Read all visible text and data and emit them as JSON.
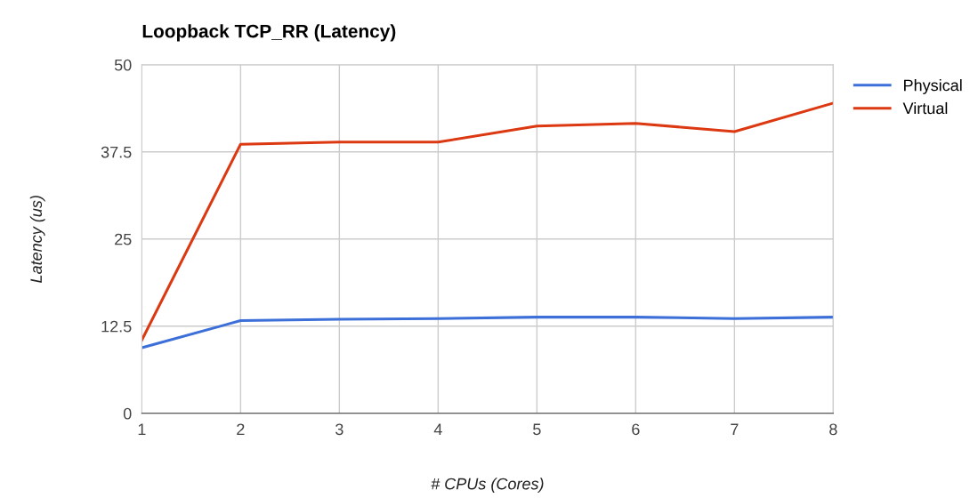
{
  "chart_data": {
    "type": "line",
    "title": "Loopback TCP_RR (Latency)",
    "xlabel": "# CPUs (Cores)",
    "ylabel": "Latency (us)",
    "x": [
      1,
      2,
      3,
      4,
      5,
      6,
      7,
      8
    ],
    "series": [
      {
        "name": "Physical",
        "color": "#3c6fd8",
        "values": [
          9.4,
          13.3,
          13.5,
          13.6,
          13.8,
          13.8,
          13.6,
          13.8
        ]
      },
      {
        "name": "Virtual",
        "color": "#dc3912",
        "values": [
          10.5,
          38.6,
          38.9,
          38.9,
          41.2,
          41.6,
          40.4,
          44.5
        ]
      }
    ],
    "xlim": [
      1,
      8
    ],
    "xticks": [
      1,
      2,
      3,
      4,
      5,
      6,
      7,
      8
    ],
    "ylim": [
      0,
      50
    ],
    "yticks": [
      0,
      12.5,
      25,
      37.5,
      50
    ],
    "grid": true,
    "legend": "top right",
    "marker": "none",
    "line_style": "solid"
  }
}
